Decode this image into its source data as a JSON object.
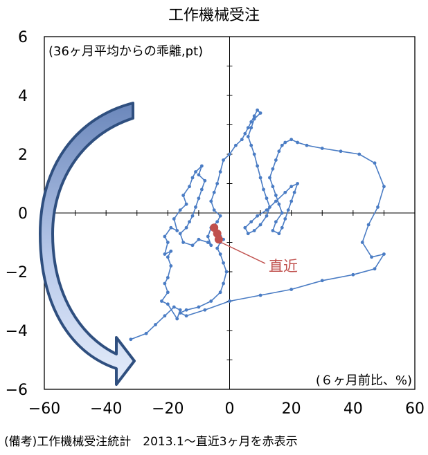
{
  "chart_data": {
    "type": "scatter",
    "title": "工作機械受注",
    "annotation_top_left": "(36ヶ月平均からの乖離,pt)",
    "annotation_bottom_right": "(６ヶ月前比、%)",
    "recent_label": "直近",
    "footnote": "(備考)工作機械受注統計　2013.1～直近3ヶ月を赤表示",
    "xlim": [
      -60,
      60
    ],
    "ylim": [
      -6,
      6
    ],
    "x_ticks": [
      "−60",
      "−40",
      "−20",
      "0",
      "20",
      "40",
      "60"
    ],
    "y_ticks": [
      "6",
      "4",
      "2",
      "0",
      "−2",
      "−4",
      "−6"
    ],
    "grid": false,
    "colors": {
      "series": "#4a7cc4",
      "recent": "#c0504d",
      "arrow_dark": "#2f4f7f",
      "arrow_light": "#c7d5ee"
    },
    "series": [
      {
        "color": "#4a7cc4",
        "points": [
          [
            -32,
            -4.3
          ],
          [
            -27,
            -4.1
          ],
          [
            -24,
            -3.8
          ],
          [
            -21,
            -3.5
          ],
          [
            -18,
            -3.2
          ],
          [
            -16,
            -3.3
          ],
          [
            -17,
            -3.6
          ],
          [
            -20,
            -3.1
          ],
          [
            -22,
            -3.0
          ],
          [
            -20,
            -2.7
          ],
          [
            -21,
            -2.4
          ],
          [
            -20,
            -2.2
          ],
          [
            -19,
            -1.8
          ],
          [
            -20,
            -1.5
          ],
          [
            -19,
            -1.3
          ],
          [
            -21,
            -1.4
          ],
          [
            -20,
            -1.0
          ],
          [
            -21,
            -0.8
          ],
          [
            -19,
            -0.5
          ],
          [
            -17,
            -0.6
          ],
          [
            -18,
            -0.2
          ],
          [
            -16,
            0.1
          ],
          [
            -14,
            0.3
          ],
          [
            -15,
            0.6
          ],
          [
            -13,
            0.9
          ],
          [
            -12,
            1.2
          ],
          [
            -11,
            1.4
          ],
          [
            -9,
            1.6
          ],
          [
            -10,
            1.3
          ],
          [
            -8,
            1.1
          ],
          [
            -9,
            0.8
          ],
          [
            -10,
            0.5
          ],
          [
            -11,
            0.2
          ],
          [
            -12,
            -0.1
          ],
          [
            -13,
            -0.3
          ],
          [
            -14,
            -0.5
          ],
          [
            -16,
            -0.7
          ],
          [
            -15,
            -1.0
          ],
          [
            -12,
            -1.1
          ],
          [
            -10,
            -0.9
          ],
          [
            -7,
            -1.0
          ],
          [
            -6,
            -1.1
          ],
          [
            -7,
            -0.8
          ],
          [
            -6,
            -0.5
          ],
          [
            -4,
            -0.3
          ],
          [
            -3,
            -0.1
          ],
          [
            -5,
            0.1
          ],
          [
            -6,
            0.4
          ],
          [
            -5,
            0.7
          ],
          [
            -4,
            1.0
          ],
          [
            -3,
            1.4
          ],
          [
            -2,
            1.8
          ],
          [
            0,
            2.0
          ],
          [
            2,
            2.3
          ],
          [
            4,
            2.5
          ],
          [
            5,
            2.7
          ],
          [
            6,
            2.9
          ],
          [
            7,
            3.1
          ],
          [
            8,
            3.3
          ],
          [
            9,
            3.5
          ],
          [
            10,
            3.4
          ],
          [
            8,
            3.2
          ],
          [
            7,
            2.9
          ],
          [
            6,
            2.6
          ],
          [
            7,
            2.3
          ],
          [
            8,
            2.0
          ],
          [
            9,
            1.6
          ],
          [
            10,
            1.2
          ],
          [
            11,
            0.8
          ],
          [
            12,
            0.5
          ],
          [
            13,
            0.2
          ],
          [
            12,
            -0.1
          ],
          [
            10,
            -0.4
          ],
          [
            8,
            -0.6
          ],
          [
            6,
            -0.7
          ],
          [
            5,
            -0.5
          ],
          [
            7,
            -0.3
          ],
          [
            9,
            -0.1
          ],
          [
            12,
            0.1
          ],
          [
            15,
            0.4
          ],
          [
            18,
            0.7
          ],
          [
            20,
            0.9
          ],
          [
            22,
            1.0
          ],
          [
            21,
            0.7
          ],
          [
            20,
            0.4
          ],
          [
            19,
            0.1
          ],
          [
            18,
            -0.2
          ],
          [
            17,
            -0.5
          ],
          [
            16,
            -0.7
          ],
          [
            14,
            -0.6
          ],
          [
            15,
            -0.3
          ],
          [
            17,
            0.0
          ],
          [
            16,
            0.3
          ],
          [
            15,
            0.6
          ],
          [
            14,
            0.9
          ],
          [
            13,
            1.2
          ],
          [
            14,
            1.5
          ],
          [
            15,
            1.8
          ],
          [
            16,
            2.1
          ],
          [
            17,
            2.3
          ],
          [
            18,
            2.4
          ],
          [
            20,
            2.5
          ],
          [
            22,
            2.4
          ],
          [
            25,
            2.3
          ],
          [
            30,
            2.2
          ],
          [
            36,
            2.1
          ],
          [
            42,
            2.0
          ],
          [
            47,
            1.7
          ],
          [
            50,
            0.9
          ],
          [
            48,
            0.2
          ],
          [
            45,
            -0.4
          ],
          [
            43,
            -1.0
          ],
          [
            46,
            -1.5
          ],
          [
            50,
            -1.4
          ],
          [
            47,
            -1.9
          ],
          [
            40,
            -2.1
          ],
          [
            30,
            -2.3
          ],
          [
            20,
            -2.6
          ],
          [
            10,
            -2.8
          ],
          [
            0,
            -3.0
          ],
          [
            -8,
            -3.3
          ],
          [
            -14,
            -3.5
          ],
          [
            -16,
            -3.4
          ],
          [
            -14,
            -3.3
          ],
          [
            -10,
            -3.2
          ],
          [
            -6,
            -3.0
          ],
          [
            -3,
            -2.7
          ],
          [
            -2,
            -2.4
          ],
          [
            -1,
            -2.0
          ],
          [
            -2,
            -1.7
          ],
          [
            -3,
            -1.4
          ],
          [
            -4,
            -1.2
          ],
          [
            -3,
            -1.0
          ],
          [
            -4,
            -0.9
          ],
          [
            -3,
            -0.8
          ],
          [
            -2,
            -0.9
          ]
        ]
      },
      {
        "color": "#c0504d",
        "points": [
          [
            -5,
            -0.5
          ],
          [
            -4,
            -0.7
          ],
          [
            -3.5,
            -0.9
          ]
        ]
      }
    ]
  }
}
